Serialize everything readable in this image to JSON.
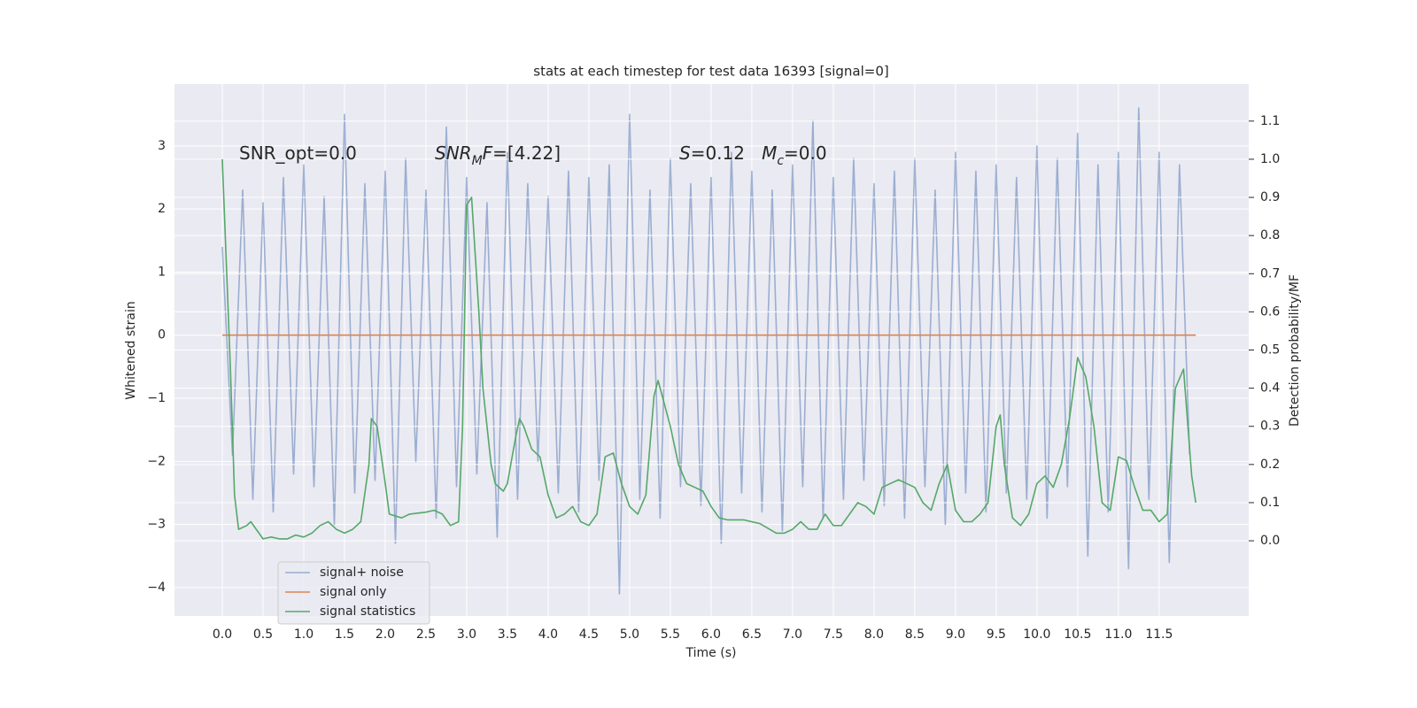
{
  "chart_data": {
    "type": "line",
    "title": "stats at each timestep for test data 16393 [signal=0]",
    "xlabel": "Time (s)",
    "ylabel": "Whitened strain",
    "y2label": "Detection probability/MF",
    "xlim": [
      -0.587,
      12.6
    ],
    "ylim": [
      -4.45,
      3.98
    ],
    "y2lim": [
      -0.197,
      1.197
    ],
    "xticks": [
      {
        "value": 0,
        "label": "0.0"
      },
      0.5,
      {
        "value": 1,
        "label": "1.0"
      },
      1.5,
      {
        "value": 2,
        "label": "2.0"
      },
      2.5,
      {
        "value": 3,
        "label": "3.0"
      },
      3.5,
      {
        "value": 4,
        "label": "4.0"
      },
      4.5,
      {
        "value": 5,
        "label": "5.0"
      },
      5.5,
      {
        "value": 6,
        "label": "6.0"
      },
      6.5,
      {
        "value": 7,
        "label": "7.0"
      },
      7.5,
      {
        "value": 8,
        "label": "8.0"
      },
      8.5,
      {
        "value": 9,
        "label": "9.0"
      },
      9.5,
      {
        "value": 10,
        "label": "10.0"
      },
      10.5,
      {
        "value": 11,
        "label": "11.0"
      },
      11.5
    ],
    "yticks": [
      {
        "value": -4,
        "label": "−4"
      },
      {
        "value": -3,
        "label": "−3"
      },
      {
        "value": -2,
        "label": "−2"
      },
      {
        "value": -1,
        "label": "−1"
      },
      0,
      1,
      2,
      3
    ],
    "y2ticks": [
      {
        "value": 0,
        "label": "0.0"
      },
      0.1,
      0.2,
      0.3,
      0.4,
      0.5,
      0.6,
      0.7,
      0.8,
      0.9,
      {
        "value": 1,
        "label": "1.0"
      },
      1.1
    ],
    "grid": true,
    "legend": "lower left",
    "background": "#eaeaf2",
    "series": [
      {
        "name": "signal+ noise",
        "color": "#4c72b0",
        "opacity": 0.5,
        "x": [
          0,
          0.125,
          0.25,
          0.375,
          0.5,
          0.625,
          0.75,
          0.875,
          1,
          1.125,
          1.25,
          1.375,
          1.5,
          1.625,
          1.75,
          1.875,
          2,
          2.125,
          2.25,
          2.375,
          2.5,
          2.625,
          2.75,
          2.875,
          3,
          3.125,
          3.25,
          3.375,
          3.5,
          3.625,
          3.75,
          3.875,
          4,
          4.125,
          4.25,
          4.375,
          4.5,
          4.625,
          4.75,
          4.875,
          5,
          5.125,
          5.25,
          5.375,
          5.5,
          5.625,
          5.75,
          5.875,
          6,
          6.125,
          6.25,
          6.375,
          6.5,
          6.625,
          6.75,
          6.875,
          7,
          7.125,
          7.25,
          7.375,
          7.5,
          7.625,
          7.75,
          7.875,
          8,
          8.125,
          8.25,
          8.375,
          8.5,
          8.625,
          8.75,
          8.875,
          9,
          9.125,
          9.25,
          9.375,
          9.5,
          9.625,
          9.75,
          9.875,
          10,
          10.125,
          10.25,
          10.375,
          10.5,
          10.625,
          10.75,
          10.875,
          11,
          11.125,
          11.25,
          11.375,
          11.5,
          11.625,
          11.75,
          11.875
        ],
        "values": [
          1.4,
          -1.9,
          2.3,
          -2.6,
          2.1,
          -2.8,
          2.5,
          -2.2,
          2.7,
          -2.4,
          2.2,
          -3.0,
          3.5,
          -2.5,
          2.4,
          -2.3,
          2.6,
          -3.3,
          2.8,
          -2.0,
          2.3,
          -2.9,
          3.3,
          -2.4,
          2.5,
          -2.2,
          2.1,
          -3.2,
          2.9,
          -2.6,
          2.4,
          -2.0,
          2.2,
          -2.5,
          2.6,
          -2.8,
          2.5,
          -2.3,
          2.7,
          -4.1,
          3.5,
          -2.6,
          2.3,
          -2.9,
          2.8,
          -2.4,
          2.4,
          -2.7,
          2.5,
          -3.3,
          2.9,
          -2.5,
          2.6,
          -2.8,
          2.3,
          -3.1,
          2.7,
          -2.4,
          3.4,
          -2.9,
          2.5,
          -2.6,
          2.8,
          -2.3,
          2.4,
          -2.7,
          2.6,
          -2.9,
          2.8,
          -2.4,
          2.3,
          -3.0,
          2.9,
          -2.5,
          2.6,
          -2.8,
          2.7,
          -2.5,
          2.5,
          -2.6,
          3.0,
          -2.9,
          2.8,
          -2.4,
          3.2,
          -3.5,
          2.7,
          -2.8,
          2.9,
          -3.7,
          3.6,
          -2.6,
          2.9,
          -3.6,
          2.7,
          -1.9
        ]
      },
      {
        "name": "signal only",
        "color": "#dd8452",
        "opacity": 1,
        "x": [
          0,
          11.95
        ],
        "values": [
          0,
          0
        ]
      },
      {
        "name": "signal statistics",
        "color": "#55a868",
        "opacity": 1,
        "axis": "y2",
        "x": [
          0,
          0.1,
          0.15,
          0.2,
          0.3,
          0.35,
          0.5,
          0.6,
          0.7,
          0.8,
          0.9,
          1.0,
          1.1,
          1.2,
          1.3,
          1.4,
          1.5,
          1.6,
          1.7,
          1.8,
          1.83,
          1.9,
          2.0,
          2.05,
          2.2,
          2.3,
          2.5,
          2.6,
          2.7,
          2.8,
          2.9,
          2.95,
          3.0,
          3.06,
          3.15,
          3.2,
          3.3,
          3.35,
          3.45,
          3.5,
          3.6,
          3.65,
          3.7,
          3.8,
          3.9,
          4.0,
          4.1,
          4.2,
          4.3,
          4.4,
          4.5,
          4.6,
          4.7,
          4.8,
          4.9,
          5.0,
          5.1,
          5.2,
          5.3,
          5.35,
          5.5,
          5.6,
          5.7,
          5.8,
          5.9,
          6.0,
          6.1,
          6.2,
          6.4,
          6.6,
          6.8,
          6.9,
          7.0,
          7.1,
          7.2,
          7.3,
          7.4,
          7.5,
          7.6,
          7.8,
          7.9,
          8.0,
          8.1,
          8.3,
          8.5,
          8.6,
          8.7,
          8.8,
          8.9,
          9.0,
          9.1,
          9.2,
          9.3,
          9.4,
          9.5,
          9.55,
          9.6,
          9.7,
          9.8,
          9.9,
          10.0,
          10.1,
          10.2,
          10.3,
          10.4,
          10.5,
          10.6,
          10.7,
          10.8,
          10.9,
          11.0,
          11.1,
          11.2,
          11.3,
          11.4,
          11.5,
          11.6,
          11.7,
          11.8,
          11.9,
          11.95
        ],
        "values": [
          1.0,
          0.45,
          0.12,
          0.03,
          0.04,
          0.05,
          0.005,
          0.01,
          0.005,
          0.005,
          0.015,
          0.01,
          0.02,
          0.04,
          0.05,
          0.03,
          0.02,
          0.03,
          0.05,
          0.2,
          0.32,
          0.3,
          0.15,
          0.07,
          0.06,
          0.07,
          0.075,
          0.08,
          0.07,
          0.04,
          0.05,
          0.3,
          0.88,
          0.9,
          0.6,
          0.4,
          0.2,
          0.15,
          0.13,
          0.15,
          0.27,
          0.32,
          0.3,
          0.24,
          0.22,
          0.12,
          0.06,
          0.07,
          0.09,
          0.05,
          0.04,
          0.07,
          0.22,
          0.23,
          0.15,
          0.09,
          0.07,
          0.12,
          0.38,
          0.42,
          0.3,
          0.2,
          0.15,
          0.14,
          0.13,
          0.09,
          0.06,
          0.055,
          0.055,
          0.045,
          0.02,
          0.02,
          0.03,
          0.05,
          0.03,
          0.03,
          0.07,
          0.04,
          0.04,
          0.1,
          0.09,
          0.07,
          0.14,
          0.16,
          0.14,
          0.1,
          0.08,
          0.15,
          0.2,
          0.08,
          0.05,
          0.05,
          0.07,
          0.1,
          0.3,
          0.33,
          0.2,
          0.06,
          0.04,
          0.07,
          0.15,
          0.17,
          0.14,
          0.2,
          0.32,
          0.48,
          0.43,
          0.3,
          0.1,
          0.08,
          0.22,
          0.21,
          0.14,
          0.08,
          0.08,
          0.05,
          0.07,
          0.4,
          0.45,
          0.17,
          0.1
        ]
      }
    ],
    "annotations": [
      {
        "parts": [
          {
            "text": "SNR_opt=0.0",
            "italic": false,
            "sub": false
          }
        ]
      },
      {
        "parts": [
          {
            "text": "SNR",
            "italic": true,
            "sub": false
          },
          {
            "text": "M",
            "italic": true,
            "sub": true
          },
          {
            "text": "F",
            "italic": true,
            "sub": false
          },
          {
            "text": "=[4.22]",
            "italic": false,
            "sub": false
          }
        ]
      },
      {
        "parts": [
          {
            "text": "S",
            "italic": true,
            "sub": false
          },
          {
            "text": "=0.12   ",
            "italic": false,
            "sub": false
          },
          {
            "text": "M",
            "italic": true,
            "sub": false
          },
          {
            "text": "c",
            "italic": true,
            "sub": true
          },
          {
            "text": "=0.0",
            "italic": false,
            "sub": false
          }
        ]
      }
    ]
  }
}
